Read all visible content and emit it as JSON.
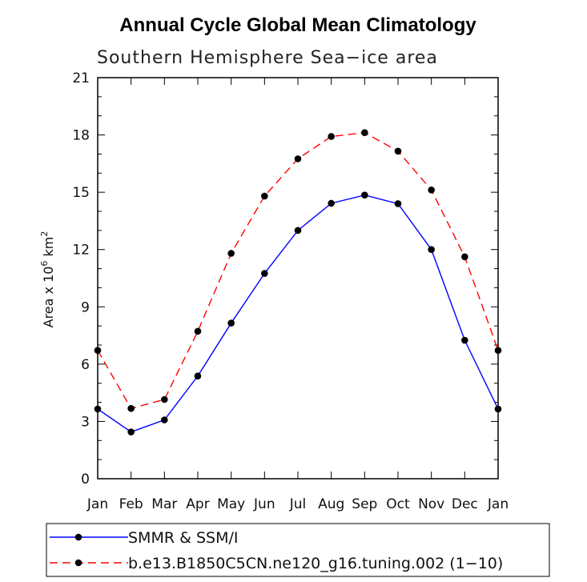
{
  "chart_data": {
    "type": "line",
    "title": "Annual Cycle Global Mean Climatology",
    "subtitle": "Southern Hemisphere Sea−ice area",
    "ylabel": "Area x 10",
    "ylabel_sup": "6",
    "ylabel_unit": " km",
    "ylabel_unit_sup": "2",
    "ylim": [
      0,
      21
    ],
    "yticks": [
      0,
      3,
      6,
      9,
      12,
      15,
      18,
      21
    ],
    "categories": [
      "Jan",
      "Feb",
      "Mar",
      "Apr",
      "May",
      "Jun",
      "Jul",
      "Aug",
      "Sep",
      "Oct",
      "Nov",
      "Dec",
      "Jan"
    ],
    "series": [
      {
        "name": "SMMR & SSM/I",
        "color": "#0000ff",
        "dash": "solid",
        "values": [
          3.65,
          2.45,
          3.08,
          5.38,
          8.15,
          10.75,
          13.0,
          14.42,
          14.85,
          14.4,
          12.0,
          7.25,
          3.65
        ]
      },
      {
        "name": "b.e13.B1850C5CN.ne120_g16.tuning.002 (1−10)",
        "color": "#ff0000",
        "dash": "dashed",
        "values": [
          6.72,
          3.68,
          4.15,
          7.72,
          11.8,
          14.8,
          16.75,
          17.92,
          18.12,
          17.15,
          15.12,
          11.62,
          6.72
        ]
      }
    ]
  }
}
